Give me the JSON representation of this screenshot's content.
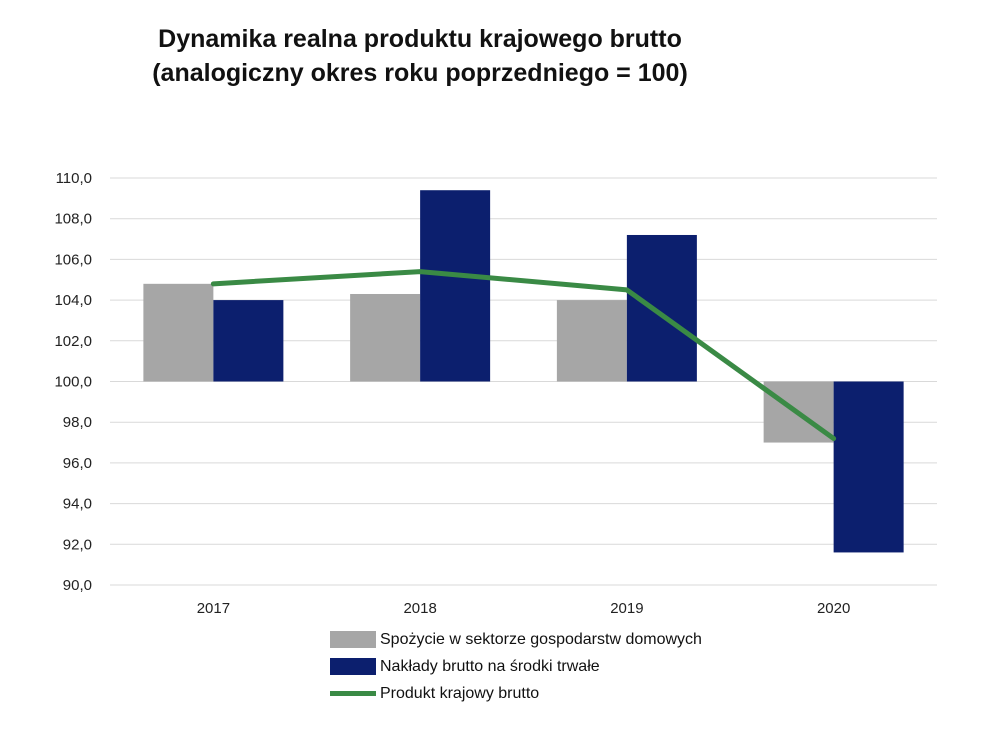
{
  "chart_data": {
    "type": "bar",
    "title": "Dynamika realna produktu krajowego brutto",
    "subtitle": "(analogiczny okres roku poprzedniego = 100)",
    "categories": [
      "2017",
      "2018",
      "2019",
      "2020"
    ],
    "baseline": 100,
    "ylim": [
      90,
      110
    ],
    "yticks": [
      "110,0",
      "108,0",
      "106,0",
      "104,0",
      "102,0",
      "100,0",
      "98,0",
      "96,0",
      "94,0",
      "92,0",
      "90,0"
    ],
    "grid": true,
    "legend_position": "bottom",
    "series": [
      {
        "name": "Spożycie w sektorze gospodarstw domowych",
        "kind": "bar",
        "color": "#a6a6a6",
        "values": [
          104.8,
          104.3,
          104.0,
          97.0
        ]
      },
      {
        "name": "Nakłady brutto na środki trwałe",
        "kind": "bar",
        "color": "#0c1f6e",
        "values": [
          104.0,
          109.4,
          107.2,
          91.6
        ]
      },
      {
        "name": "Produkt krajowy brutto",
        "kind": "line",
        "color": "#3a8a45",
        "values": [
          104.8,
          105.4,
          104.5,
          97.2
        ]
      }
    ]
  }
}
